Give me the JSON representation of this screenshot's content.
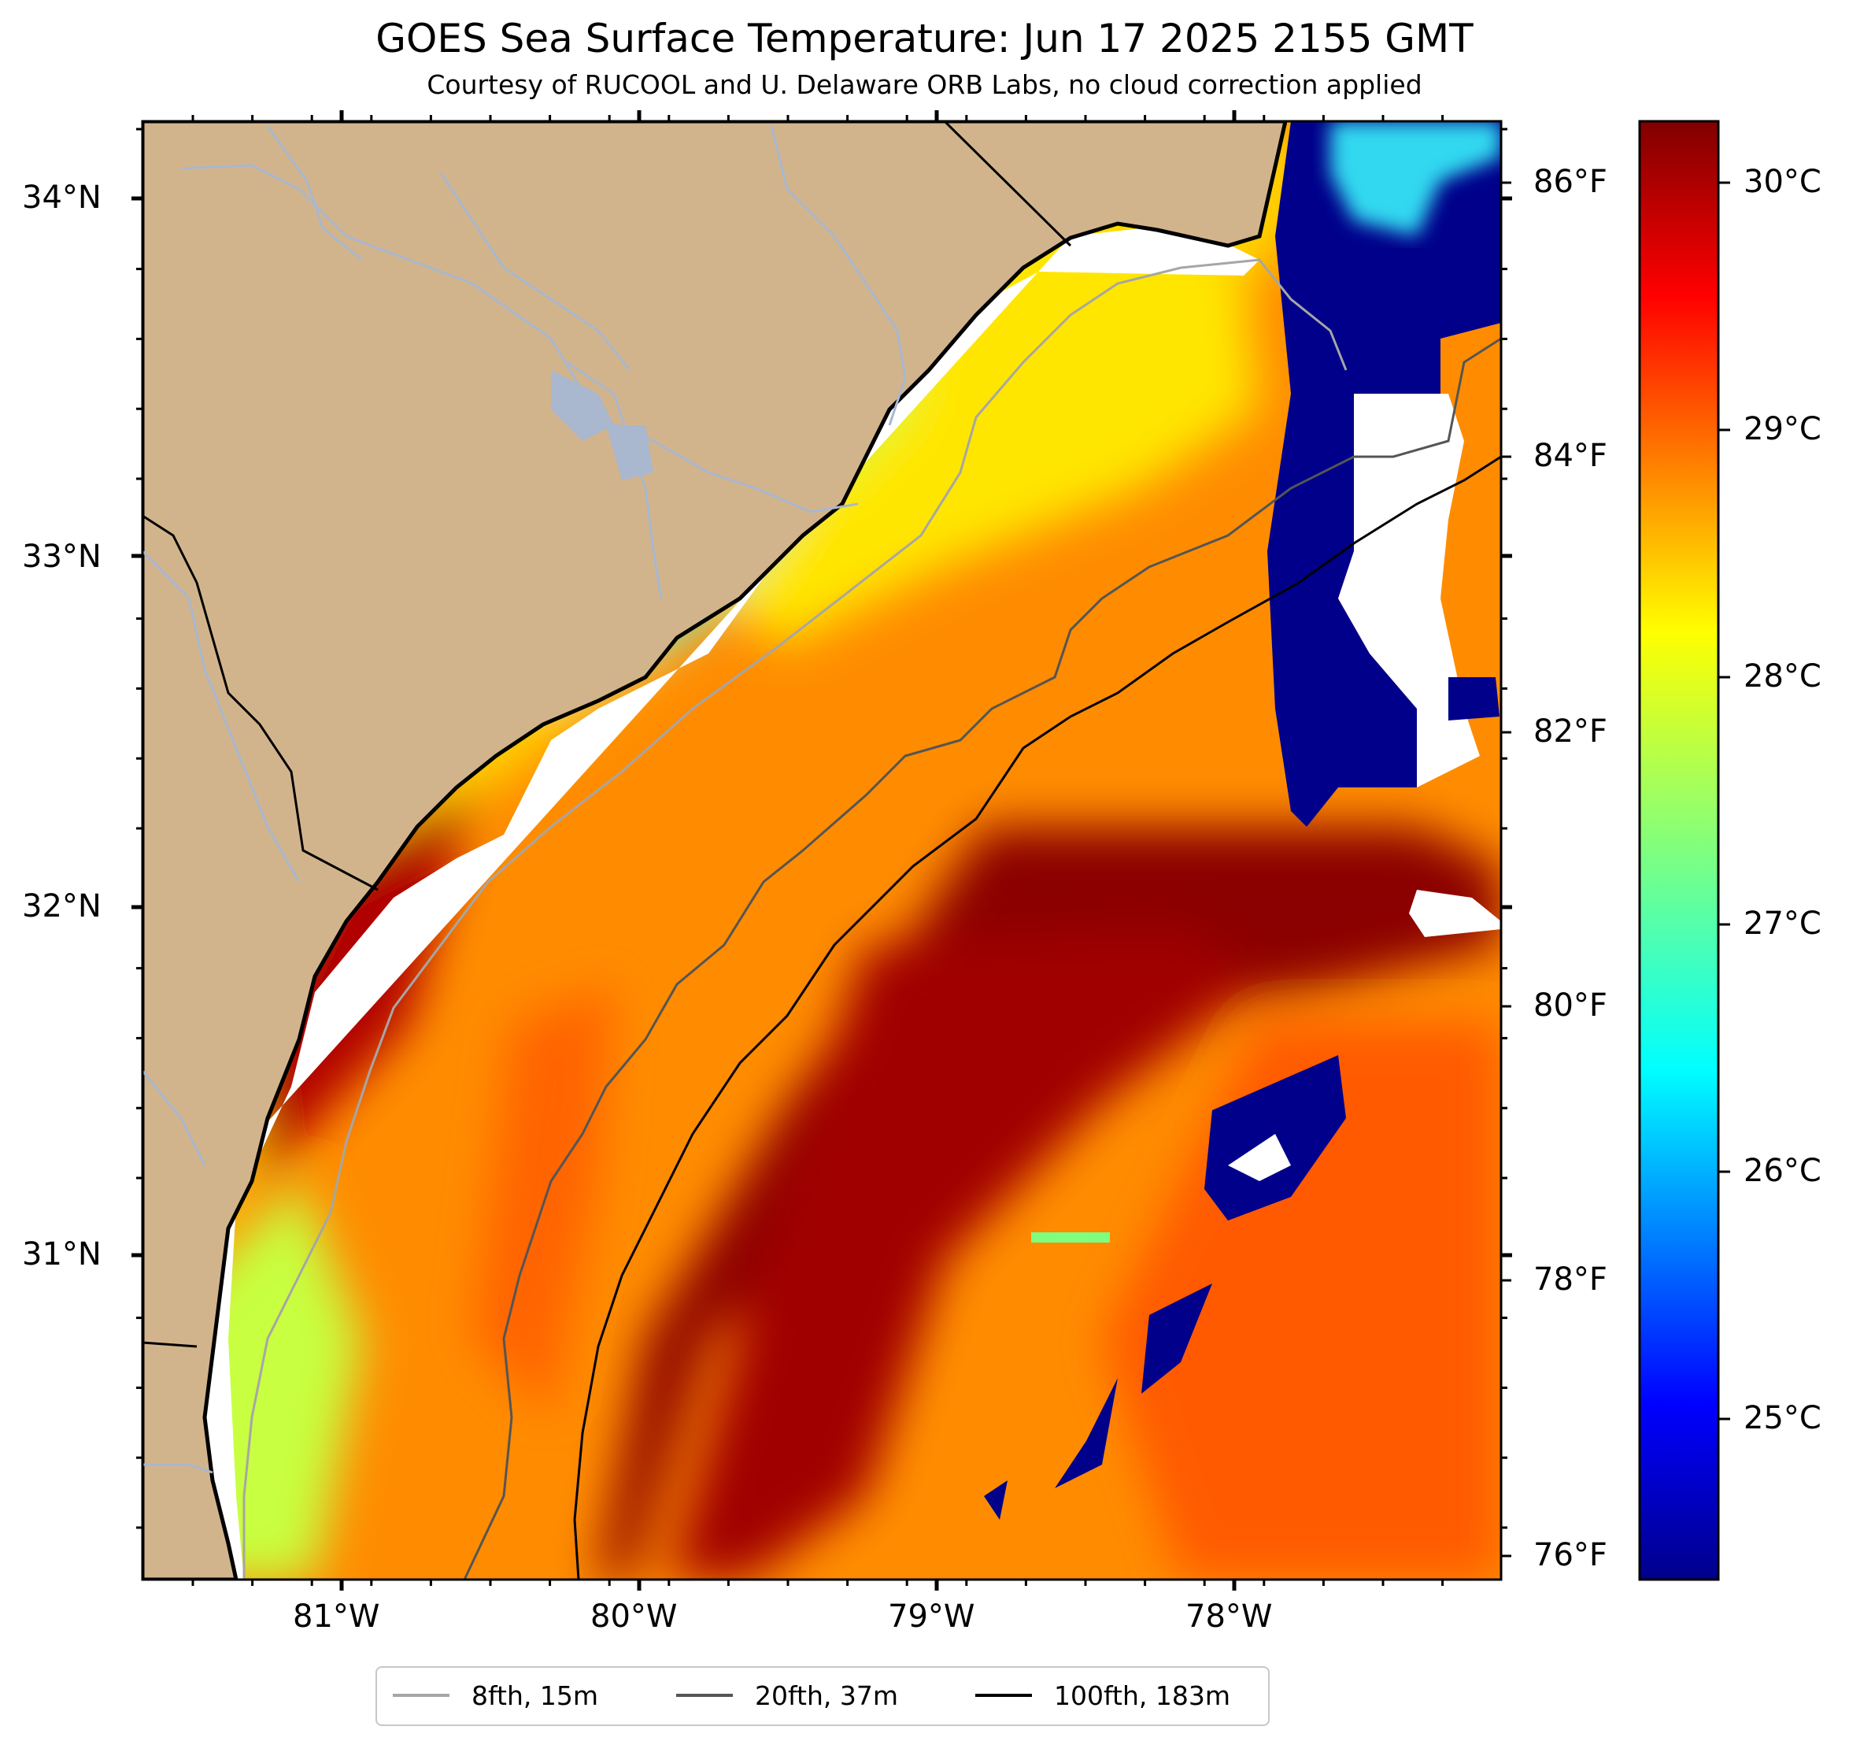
{
  "title": "GOES Sea Surface Temperature: Jun 17 2025 2155 GMT",
  "subtitle": "Courtesy of RUCOOL and U. Delaware ORB Labs, no cloud correction applied",
  "colors": {
    "land": "#d2b48c",
    "no_data": "#ffffff",
    "river": "#a9b7cf",
    "cold_cloud": "#00008b"
  },
  "lat_labels": [
    "34°N",
    "33°N",
    "32°N",
    "31°N"
  ],
  "lon_labels": [
    "81°W",
    "80°W",
    "79°W",
    "78°W"
  ],
  "colorbar": {
    "units_c": [
      "30°C",
      "29°C",
      "28°C",
      "27°C",
      "26°C",
      "25°C"
    ],
    "units_f": [
      "86°F",
      "84°F",
      "82°F",
      "80°F",
      "78°F",
      "76°F"
    ],
    "colormap": "jet",
    "range_c": [
      24.3,
      30.4
    ]
  },
  "legend": [
    {
      "label": "8fth, 15m",
      "color": "#a6a6a6"
    },
    {
      "label": "20fth, 37m",
      "color": "#555555"
    },
    {
      "label": "100fth, 183m",
      "color": "#000000"
    }
  ]
}
